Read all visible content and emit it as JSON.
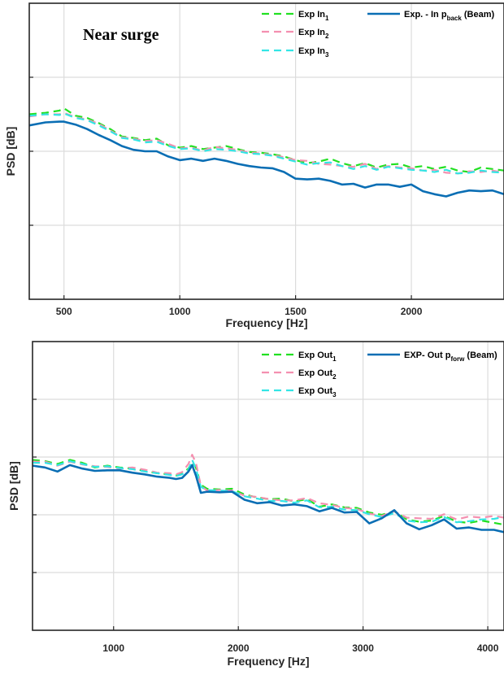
{
  "chart_data": [
    {
      "type": "line",
      "annotation": "Near surge",
      "xlabel": "Frequency [Hz]",
      "ylabel": "PSD [dB]",
      "xlim": [
        350,
        2400
      ],
      "ylim": [
        0,
        4
      ],
      "xticks": [
        500,
        1000,
        1500,
        2000
      ],
      "yticks": [
        1,
        2,
        3
      ],
      "show_ytick_labels": false,
      "grid": true,
      "legend_position": "top-right",
      "series": [
        {
          "name": "Exp In",
          "name_sub": "1",
          "color": "#22e022",
          "dash": "dashed",
          "x": [
            350,
            420,
            480,
            500,
            550,
            600,
            650,
            700,
            750,
            800,
            850,
            900,
            950,
            1000,
            1050,
            1100,
            1150,
            1200,
            1250,
            1300,
            1350,
            1400,
            1450,
            1500,
            1550,
            1600,
            1650,
            1700,
            1750,
            1800,
            1850,
            1900,
            1950,
            2000,
            2050,
            2100,
            2150,
            2200,
            2250,
            2300,
            2350,
            2400
          ],
          "y": [
            2.5,
            2.52,
            2.55,
            2.58,
            2.48,
            2.45,
            2.38,
            2.3,
            2.2,
            2.18,
            2.15,
            2.17,
            2.08,
            2.05,
            2.07,
            2.03,
            2.05,
            2.07,
            2.03,
            1.99,
            1.98,
            1.96,
            1.93,
            1.88,
            1.84,
            1.86,
            1.9,
            1.84,
            1.8,
            1.84,
            1.78,
            1.82,
            1.83,
            1.78,
            1.8,
            1.76,
            1.79,
            1.74,
            1.72,
            1.78,
            1.76,
            1.74
          ]
        },
        {
          "name": "Exp In",
          "name_sub": "2",
          "color": "#f490b0",
          "dash": "dashed",
          "x": [
            350,
            420,
            480,
            500,
            550,
            600,
            650,
            700,
            750,
            800,
            850,
            900,
            950,
            1000,
            1050,
            1100,
            1150,
            1200,
            1250,
            1300,
            1350,
            1400,
            1450,
            1500,
            1550,
            1600,
            1650,
            1700,
            1750,
            1800,
            1850,
            1900,
            1950,
            2000,
            2050,
            2100,
            2150,
            2200,
            2250,
            2300,
            2350,
            2400
          ],
          "y": [
            2.47,
            2.5,
            2.5,
            2.52,
            2.46,
            2.43,
            2.37,
            2.28,
            2.19,
            2.17,
            2.14,
            2.15,
            2.1,
            2.04,
            2.05,
            2.01,
            2.06,
            2.04,
            2.02,
            1.98,
            1.97,
            1.95,
            1.92,
            1.88,
            1.87,
            1.83,
            1.82,
            1.8,
            1.79,
            1.83,
            1.76,
            1.8,
            1.78,
            1.77,
            1.74,
            1.75,
            1.71,
            1.7,
            1.73,
            1.72,
            1.74,
            1.71
          ]
        },
        {
          "name": "Exp In",
          "name_sub": "3",
          "color": "#33e5e5",
          "dash": "dashed",
          "x": [
            350,
            420,
            480,
            500,
            550,
            600,
            650,
            700,
            750,
            800,
            850,
            900,
            950,
            1000,
            1050,
            1100,
            1150,
            1200,
            1250,
            1300,
            1350,
            1400,
            1450,
            1500,
            1550,
            1600,
            1650,
            1700,
            1750,
            1800,
            1850,
            1900,
            1950,
            2000,
            2050,
            2100,
            2150,
            2200,
            2250,
            2300,
            2350,
            2400
          ],
          "y": [
            2.48,
            2.5,
            2.49,
            2.51,
            2.45,
            2.42,
            2.35,
            2.27,
            2.18,
            2.16,
            2.12,
            2.13,
            2.07,
            2.03,
            2.04,
            2.0,
            2.03,
            2.02,
            2.0,
            1.97,
            1.96,
            1.94,
            1.9,
            1.86,
            1.82,
            1.84,
            1.85,
            1.8,
            1.76,
            1.8,
            1.75,
            1.79,
            1.77,
            1.75,
            1.74,
            1.72,
            1.75,
            1.7,
            1.71,
            1.74,
            1.72,
            1.71
          ]
        },
        {
          "name": "Exp. - In p",
          "name_sub": "back",
          "name_suffix": " (Beam)",
          "color": "#0a6eb4",
          "dash": "solid",
          "x": [
            350,
            420,
            480,
            500,
            550,
            600,
            650,
            700,
            750,
            800,
            850,
            900,
            950,
            1000,
            1050,
            1100,
            1150,
            1200,
            1250,
            1300,
            1350,
            1400,
            1450,
            1500,
            1550,
            1600,
            1650,
            1700,
            1750,
            1800,
            1850,
            1900,
            1950,
            2000,
            2050,
            2100,
            2150,
            2200,
            2250,
            2300,
            2350,
            2400
          ],
          "y": [
            2.35,
            2.39,
            2.4,
            2.4,
            2.36,
            2.3,
            2.22,
            2.15,
            2.07,
            2.02,
            2.0,
            2.0,
            1.93,
            1.88,
            1.9,
            1.87,
            1.9,
            1.87,
            1.83,
            1.8,
            1.78,
            1.77,
            1.72,
            1.63,
            1.62,
            1.63,
            1.6,
            1.55,
            1.56,
            1.51,
            1.55,
            1.55,
            1.52,
            1.55,
            1.46,
            1.42,
            1.39,
            1.44,
            1.47,
            1.46,
            1.47,
            1.42
          ]
        }
      ]
    },
    {
      "type": "line",
      "xlabel": "Frequency [Hz]",
      "ylabel": "PSD [dB]",
      "xlim": [
        350,
        4130
      ],
      "ylim": [
        0,
        5
      ],
      "xticks": [
        1000,
        2000,
        3000,
        4000
      ],
      "yticks": [
        1,
        2,
        3,
        4
      ],
      "show_ytick_labels": false,
      "grid": true,
      "legend_position": "top-right",
      "series": [
        {
          "name": "Exp Out",
          "name_sub": "1",
          "color": "#22e022",
          "dash": "dashed",
          "x": [
            350,
            450,
            550,
            650,
            750,
            850,
            950,
            1050,
            1150,
            1250,
            1350,
            1450,
            1500,
            1550,
            1600,
            1630,
            1660,
            1700,
            1750,
            1850,
            1950,
            2050,
            2150,
            2250,
            2350,
            2450,
            2550,
            2650,
            2750,
            2850,
            2950,
            3050,
            3150,
            3250,
            3350,
            3450,
            3550,
            3650,
            3750,
            3850,
            3950,
            4050,
            4130
          ],
          "y": [
            2.95,
            2.93,
            2.88,
            2.95,
            2.9,
            2.82,
            2.85,
            2.82,
            2.8,
            2.76,
            2.72,
            2.7,
            2.68,
            2.72,
            2.8,
            2.92,
            2.82,
            2.52,
            2.45,
            2.44,
            2.45,
            2.35,
            2.3,
            2.27,
            2.28,
            2.23,
            2.27,
            2.14,
            2.18,
            2.13,
            2.12,
            2.04,
            2.0,
            2.06,
            1.92,
            1.88,
            1.9,
            1.98,
            1.88,
            1.86,
            1.9,
            1.86,
            1.83
          ]
        },
        {
          "name": "Exp Out",
          "name_sub": "2",
          "color": "#f490b0",
          "dash": "dashed",
          "x": [
            350,
            450,
            550,
            650,
            750,
            850,
            950,
            1050,
            1150,
            1250,
            1350,
            1450,
            1500,
            1550,
            1600,
            1630,
            1660,
            1700,
            1750,
            1850,
            1950,
            2050,
            2150,
            2250,
            2350,
            2450,
            2550,
            2650,
            2750,
            2850,
            2950,
            3050,
            3150,
            3250,
            3350,
            3450,
            3550,
            3650,
            3750,
            3850,
            3950,
            4050,
            4130
          ],
          "y": [
            2.92,
            2.92,
            2.85,
            2.92,
            2.87,
            2.84,
            2.83,
            2.8,
            2.82,
            2.78,
            2.73,
            2.72,
            2.7,
            2.74,
            2.88,
            3.04,
            2.9,
            2.5,
            2.42,
            2.43,
            2.42,
            2.33,
            2.31,
            2.27,
            2.25,
            2.25,
            2.29,
            2.2,
            2.17,
            2.12,
            2.1,
            2.02,
            1.98,
            2.06,
            1.95,
            1.94,
            1.93,
            2.01,
            1.92,
            1.97,
            1.95,
            1.98,
            1.95
          ]
        },
        {
          "name": "Exp Out",
          "name_sub": "3",
          "color": "#33e5e5",
          "dash": "dashed",
          "x": [
            350,
            450,
            550,
            650,
            750,
            850,
            950,
            1050,
            1150,
            1250,
            1350,
            1450,
            1500,
            1550,
            1600,
            1630,
            1660,
            1700,
            1750,
            1850,
            1950,
            2050,
            2150,
            2250,
            2350,
            2450,
            2550,
            2650,
            2750,
            2850,
            2950,
            3050,
            3150,
            3250,
            3350,
            3450,
            3550,
            3650,
            3750,
            3850,
            3950,
            4050,
            4130
          ],
          "y": [
            2.9,
            2.9,
            2.86,
            2.93,
            2.88,
            2.83,
            2.84,
            2.81,
            2.79,
            2.75,
            2.72,
            2.69,
            2.67,
            2.7,
            2.78,
            2.95,
            2.8,
            2.48,
            2.43,
            2.42,
            2.41,
            2.32,
            2.28,
            2.24,
            2.24,
            2.21,
            2.25,
            2.13,
            2.14,
            2.09,
            2.08,
            2.01,
            1.96,
            2.03,
            1.9,
            1.87,
            1.88,
            1.96,
            1.87,
            1.89,
            1.92,
            1.93,
            1.96
          ]
        },
        {
          "name": "EXP- Out p",
          "name_sub": "forw",
          "name_suffix": " (Beam)",
          "color": "#0a6eb4",
          "dash": "solid",
          "x": [
            350,
            450,
            550,
            650,
            750,
            850,
            950,
            1050,
            1150,
            1250,
            1350,
            1450,
            1500,
            1550,
            1600,
            1630,
            1660,
            1700,
            1750,
            1850,
            1950,
            2050,
            2150,
            2250,
            2350,
            2450,
            2550,
            2650,
            2750,
            2850,
            2950,
            3050,
            3150,
            3250,
            3350,
            3450,
            3550,
            3650,
            3750,
            3850,
            3950,
            4050,
            4130
          ],
          "y": [
            2.85,
            2.82,
            2.75,
            2.86,
            2.8,
            2.76,
            2.77,
            2.77,
            2.73,
            2.7,
            2.66,
            2.64,
            2.62,
            2.64,
            2.75,
            2.86,
            2.68,
            2.38,
            2.4,
            2.39,
            2.4,
            2.26,
            2.2,
            2.22,
            2.16,
            2.18,
            2.15,
            2.06,
            2.12,
            2.04,
            2.05,
            1.85,
            1.94,
            2.08,
            1.85,
            1.75,
            1.82,
            1.92,
            1.76,
            1.78,
            1.74,
            1.74,
            1.7
          ]
        }
      ]
    }
  ]
}
